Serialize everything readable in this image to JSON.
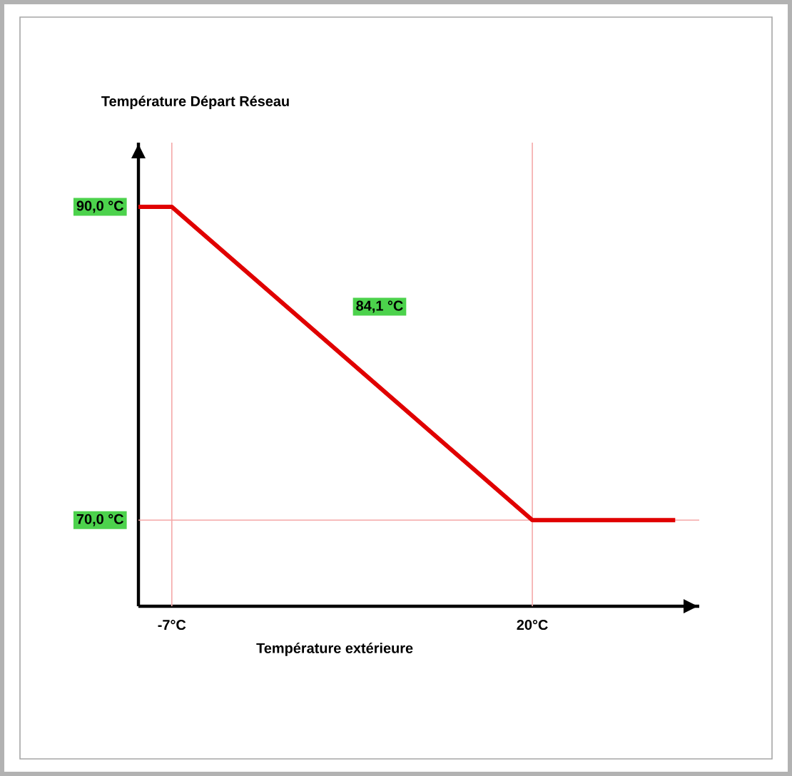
{
  "chart_data": {
    "type": "line",
    "xlabel": "Température extérieure",
    "ylabel": "Température Départ Réseau",
    "x": [
      -9.5,
      -7,
      20,
      30.7
    ],
    "series": [
      {
        "color": "#e00000",
        "values": [
          90,
          90,
          70,
          70
        ]
      }
    ],
    "xlim": [
      -9.5,
      32.5
    ],
    "ylim": [
      64.5,
      94.1
    ],
    "xticks": [
      {
        "value": -7,
        "label": "-7°C"
      },
      {
        "value": 20,
        "label": "20°C"
      }
    ],
    "yticks": [
      {
        "value": 70,
        "label": "70,0 °C"
      },
      {
        "value": 90,
        "label": "90,0 °C"
      }
    ],
    "ref_lines": [
      {
        "axis": "x",
        "value": -7,
        "color": "#f4a8a8"
      },
      {
        "axis": "x",
        "value": 20,
        "color": "#f4a8a8"
      },
      {
        "axis": "y",
        "value": 70,
        "color": "#f4a8a8"
      }
    ],
    "annotations": [
      "84,1 °C"
    ],
    "grid": false,
    "marker": "none",
    "line_style": "solid"
  }
}
